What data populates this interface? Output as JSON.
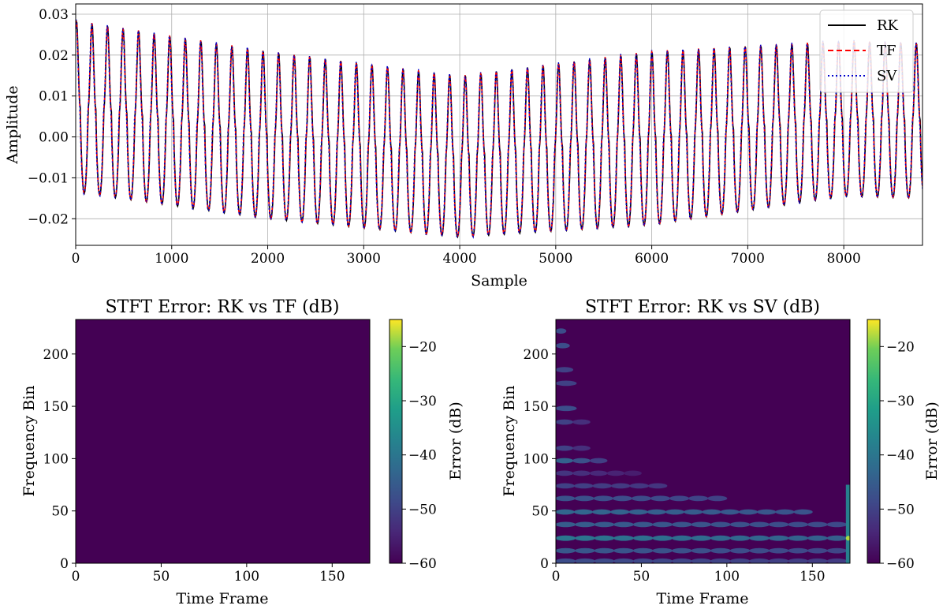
{
  "chart_data": [
    {
      "type": "line",
      "title": "",
      "xlabel": "Sample",
      "ylabel": "Amplitude",
      "xlim": [
        0,
        8820
      ],
      "ylim": [
        -0.0265,
        0.0325
      ],
      "xticks": [
        0,
        1000,
        2000,
        3000,
        4000,
        5000,
        6000,
        7000,
        8000
      ],
      "xtick_labels": [
        "0",
        "1000",
        "2000",
        "3000",
        "4000",
        "5000",
        "6000",
        "7000",
        "8000"
      ],
      "yticks": [
        -0.02,
        -0.01,
        0.0,
        0.01,
        0.02,
        0.03
      ],
      "ytick_labels": [
        "−0.02",
        "−0.01",
        "0.00",
        "0.01",
        "0.02",
        "0.03"
      ],
      "grid": true,
      "legend_position": "top-right",
      "period_samples": 162,
      "first_peak_sample": 170,
      "envelope": {
        "sample": [
          0,
          2000,
          4000,
          6000,
          8000,
          8820
        ],
        "peak": [
          0.0285,
          0.021,
          0.015,
          0.021,
          0.0235,
          0.023
        ],
        "trough": [
          -0.0135,
          -0.02,
          -0.0245,
          -0.0215,
          -0.0145,
          -0.015
        ]
      },
      "series": [
        {
          "name": "RK",
          "color": "#000000",
          "style": "solid"
        },
        {
          "name": "TF",
          "color": "#ff0000",
          "style": "dashed"
        },
        {
          "name": "SV",
          "color": "#0000cc",
          "style": "dotted"
        }
      ]
    },
    {
      "type": "heatmap",
      "title": "STFT Error: RK vs TF (dB)",
      "xlabel": "Time Frame",
      "ylabel": "Frequency Bin",
      "xlim": [
        0,
        172
      ],
      "ylim": [
        0,
        233
      ],
      "xticks": [
        0,
        50,
        100,
        150
      ],
      "yticks": [
        0,
        50,
        100,
        150,
        200
      ],
      "colorbar_label": "Error (dB)",
      "colorbar_range": [
        -60,
        -15
      ],
      "colorbar_ticks": [
        -60,
        -50,
        -40,
        -30,
        -20
      ],
      "colorbar_tick_labels": [
        "−60",
        "−50",
        "−40",
        "−30",
        "−20"
      ],
      "background_db": -60,
      "features": []
    },
    {
      "type": "heatmap",
      "title": "STFT Error: RK vs SV (dB)",
      "xlabel": "Time Frame",
      "ylabel": "Frequency Bin",
      "xlim": [
        0,
        172
      ],
      "ylim": [
        0,
        233
      ],
      "xticks": [
        0,
        50,
        100,
        150
      ],
      "yticks": [
        0,
        50,
        100,
        150,
        200
      ],
      "colorbar_label": "Error (dB)",
      "colorbar_range": [
        -60,
        -15
      ],
      "colorbar_ticks": [
        -60,
        -50,
        -40,
        -30,
        -20
      ],
      "colorbar_tick_labels": [
        "−60",
        "−50",
        "−40",
        "−30",
        "−20"
      ],
      "background_db": -60,
      "features": [
        {
          "kind": "band",
          "bin": 2,
          "frame_start": 0,
          "frame_end": 170,
          "db": -48
        },
        {
          "kind": "band",
          "bin": 12,
          "frame_start": 0,
          "frame_end": 170,
          "db": -46
        },
        {
          "kind": "band",
          "bin": 24,
          "frame_start": 0,
          "frame_end": 170,
          "db": -40
        },
        {
          "kind": "band",
          "bin": 37,
          "frame_start": 0,
          "frame_end": 170,
          "db": -45
        },
        {
          "kind": "band",
          "bin": 49,
          "frame_start": 0,
          "frame_end": 150,
          "db": -43
        },
        {
          "kind": "band",
          "bin": 62,
          "frame_start": 0,
          "frame_end": 100,
          "db": -47
        },
        {
          "kind": "band",
          "bin": 74,
          "frame_start": 0,
          "frame_end": 65,
          "db": -50
        },
        {
          "kind": "band",
          "bin": 86,
          "frame_start": 0,
          "frame_end": 50,
          "db": -52
        },
        {
          "kind": "band",
          "bin": 98,
          "frame_start": 0,
          "frame_end": 30,
          "db": -44
        },
        {
          "kind": "band",
          "bin": 110,
          "frame_start": 0,
          "frame_end": 20,
          "db": -50
        },
        {
          "kind": "band",
          "bin": 135,
          "frame_start": 0,
          "frame_end": 20,
          "db": -50
        },
        {
          "kind": "band",
          "bin": 148,
          "frame_start": 0,
          "frame_end": 12,
          "db": -48
        },
        {
          "kind": "band",
          "bin": 172,
          "frame_start": 0,
          "frame_end": 12,
          "db": -50
        },
        {
          "kind": "band",
          "bin": 185,
          "frame_start": 0,
          "frame_end": 10,
          "db": -50
        },
        {
          "kind": "band",
          "bin": 208,
          "frame_start": 0,
          "frame_end": 8,
          "db": -48
        },
        {
          "kind": "band",
          "bin": 222,
          "frame_start": 0,
          "frame_end": 6,
          "db": -48
        },
        {
          "kind": "column",
          "frame": 171,
          "bin_start": 0,
          "bin_end": 75,
          "db": -38
        },
        {
          "kind": "spot",
          "frame": 171,
          "bin": 24,
          "db": -18
        }
      ]
    }
  ]
}
